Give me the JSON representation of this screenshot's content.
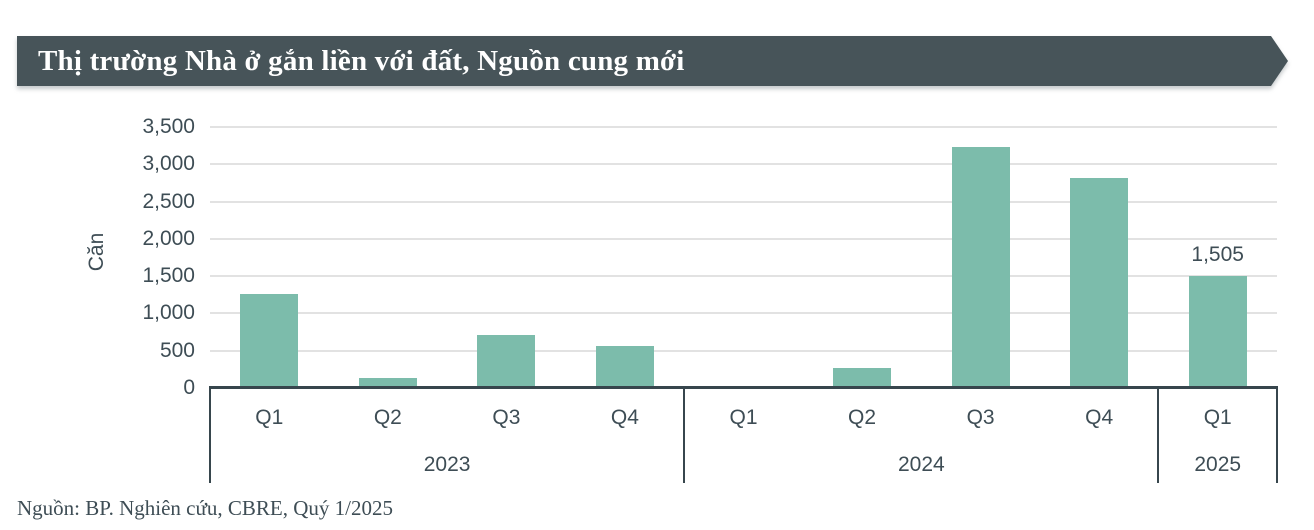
{
  "header": {
    "title": "Thị trường Nhà ở gắn liền với đất, Nguồn cung mới",
    "bg_color": "#475459",
    "text_color": "#ffffff"
  },
  "chart_data": {
    "type": "bar",
    "title": "Thị trường Nhà ở gắn liền với đất, Nguồn cung mới",
    "xlabel": "",
    "ylabel": "Căn",
    "ylim": [
      0,
      3500
    ],
    "grid": true,
    "legend": "none",
    "bar_color": "#7CBCAB",
    "axis_color": "#37464D",
    "gridline_color": "#E2E2E2",
    "label_color": "#3E4D55",
    "yticks": [
      0,
      500,
      1000,
      1500,
      2000,
      2500,
      3000,
      3500
    ],
    "ytick_labels": [
      "0",
      "500",
      "1,000",
      "1,500",
      "2,000",
      "2,500",
      "3,000",
      "3,500"
    ],
    "categories": [
      "Q1",
      "Q2",
      "Q3",
      "Q4",
      "Q1",
      "Q2",
      "Q3",
      "Q4",
      "Q1"
    ],
    "values": [
      1260,
      140,
      710,
      560,
      25,
      270,
      3230,
      2820,
      1505
    ],
    "groups": [
      {
        "label": "2023",
        "count": 4
      },
      {
        "label": "2024",
        "count": 4
      },
      {
        "label": "2025",
        "count": 1
      }
    ],
    "data_labels": [
      {
        "index": 8,
        "text": "1,505"
      }
    ]
  },
  "source": {
    "text": "Nguồn: BP. Nghiên cứu, CBRE, Quý 1/2025"
  }
}
